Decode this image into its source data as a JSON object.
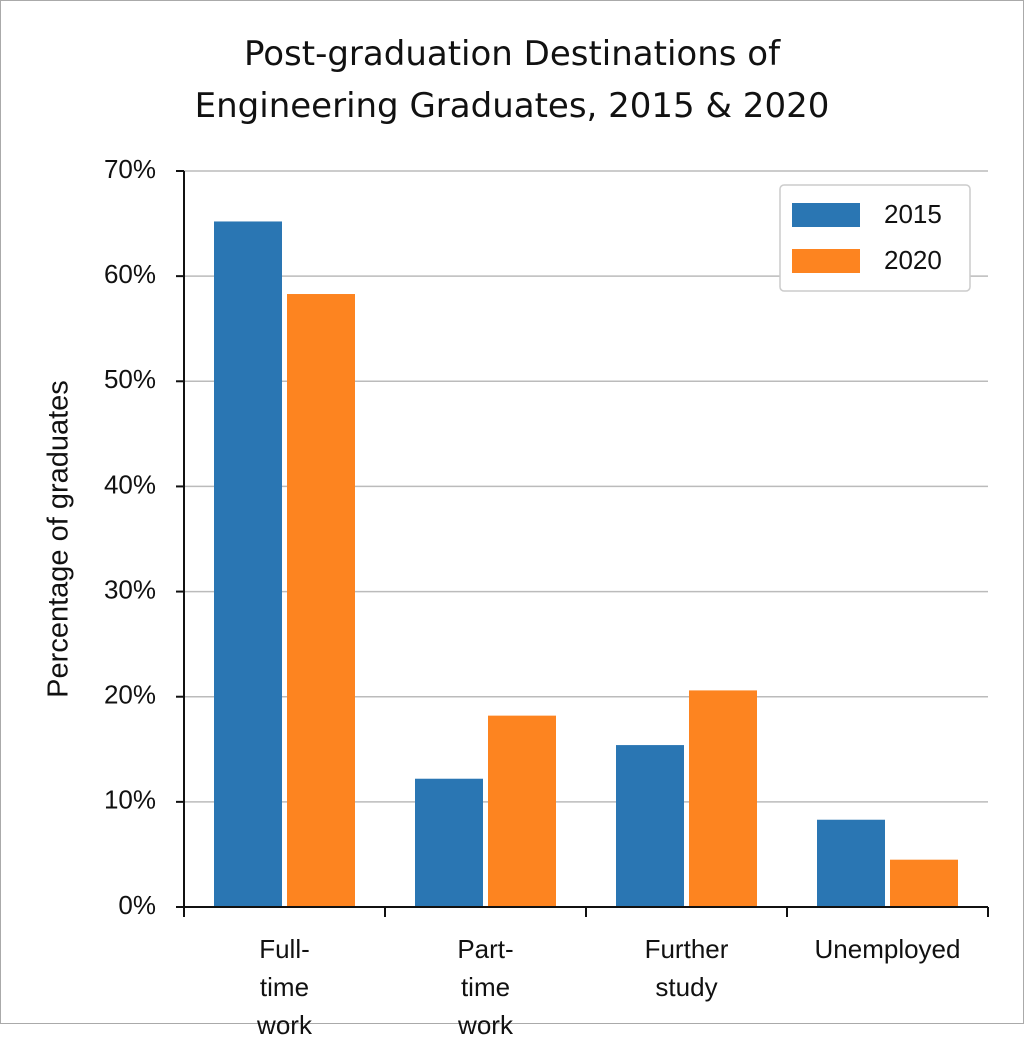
{
  "chart_data": {
    "type": "bar",
    "title": "Post-graduation Destinations of Engineering Graduates, 2015 & 2020",
    "y_label": "Percentage of graduates",
    "categories": [
      "Full-time work",
      "Part-time work",
      "Further study",
      "Unemployed"
    ],
    "series": [
      {
        "name": "2015",
        "color": "#2a76b3",
        "values": [
          65.2,
          12.2,
          15.4,
          8.3
        ]
      },
      {
        "name": "2020",
        "color": "#fd8420",
        "values": [
          58.3,
          18.2,
          20.6,
          4.5
        ]
      }
    ],
    "ylim": [
      0,
      70
    ],
    "yticks": [
      {
        "value": 0,
        "label": "0%"
      },
      {
        "value": 10,
        "label": "10%"
      },
      {
        "value": 20,
        "label": "20%"
      },
      {
        "value": 30,
        "label": "30%"
      },
      {
        "value": 40,
        "label": "40%"
      },
      {
        "value": 50,
        "label": "50%"
      },
      {
        "value": 60,
        "label": "60%"
      },
      {
        "value": 70,
        "label": "70%"
      }
    ],
    "grid": true,
    "legend_position": "upper right"
  }
}
